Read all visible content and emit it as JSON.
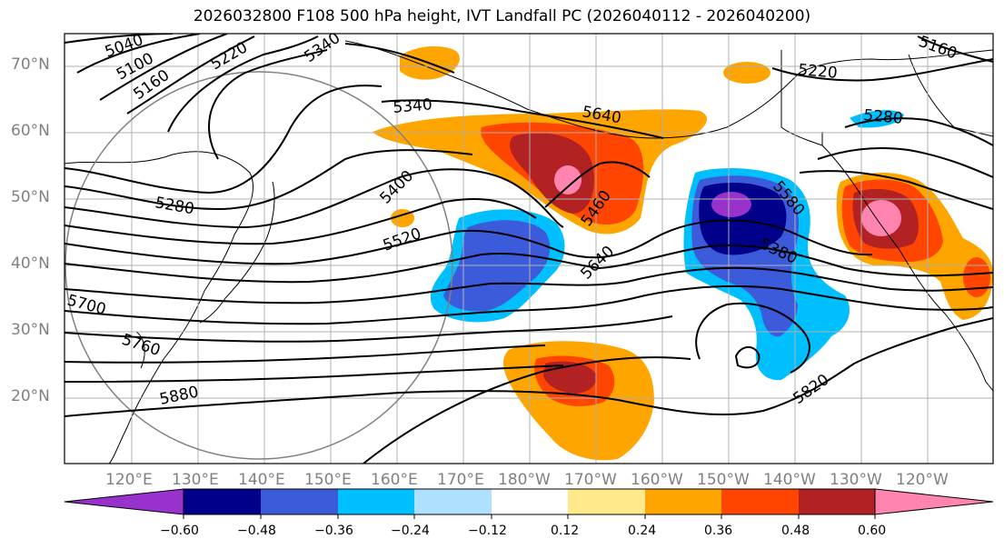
{
  "title": "2026032800 F108 500 hPa height, IVT Landfall PC (2026040112 - 2026040200)",
  "lat_labels": [
    "70°N",
    "60°N",
    "50°N",
    "40°N",
    "30°N",
    "20°N"
  ],
  "lon_labels": [
    "120°E",
    "130°E",
    "140°E",
    "150°E",
    "160°E",
    "170°E",
    "180°W",
    "170°W",
    "160°W",
    "150°W",
    "140°W",
    "130°W",
    "120°W"
  ],
  "contour_labels": [
    "5040",
    "5100",
    "5160",
    "5220",
    "5340",
    "5340",
    "5280",
    "5400",
    "5460",
    "5520",
    "5640",
    "5640",
    "5700",
    "5760",
    "5880",
    "5160",
    "5220",
    "5280",
    "5580",
    "5380",
    "5820"
  ],
  "colorbar": {
    "ticks": [
      "−0.60",
      "−0.48",
      "−0.36",
      "−0.24",
      "−0.12",
      "0.12",
      "0.24",
      "0.36",
      "0.48",
      "0.60"
    ],
    "colors": [
      "#9932cc",
      "#00008b",
      "#3b5bdb",
      "#00bfff",
      "#b0e0ff",
      "#ffffff",
      "#ffe98a",
      "#ffa500",
      "#ff4500",
      "#b22222",
      "#ff85b0"
    ]
  }
}
